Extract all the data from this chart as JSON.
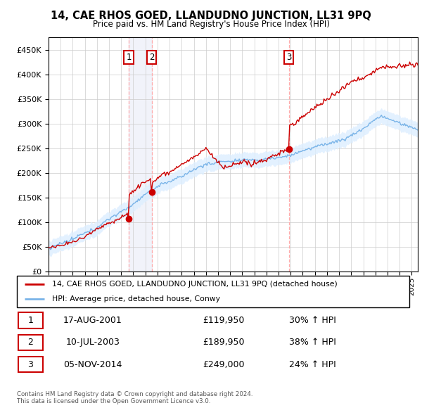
{
  "title": "14, CAE RHOS GOED, LLANDUDNO JUNCTION, LL31 9PQ",
  "subtitle": "Price paid vs. HM Land Registry's House Price Index (HPI)",
  "ylim": [
    0,
    475000
  ],
  "xlim_start": 1995.0,
  "xlim_end": 2025.5,
  "purchases": [
    {
      "label": "1",
      "date_num": 2001.62,
      "price": 119950
    },
    {
      "label": "2",
      "date_num": 2003.52,
      "price": 189950
    },
    {
      "label": "3",
      "date_num": 2014.84,
      "price": 249000
    }
  ],
  "legend_entries": [
    {
      "label": "14, CAE RHOS GOED, LLANDUDNO JUNCTION, LL31 9PQ (detached house)",
      "color": "#cc0000"
    },
    {
      "label": "HPI: Average price, detached house, Conwy",
      "color": "#7ab4e8"
    }
  ],
  "table_rows": [
    {
      "num": "1",
      "date": "17-AUG-2001",
      "price": "£119,950",
      "hpi": "30% ↑ HPI"
    },
    {
      "num": "2",
      "date": "10-JUL-2003",
      "price": "£189,950",
      "hpi": "38% ↑ HPI"
    },
    {
      "num": "3",
      "date": "05-NOV-2014",
      "price": "£249,000",
      "hpi": "24% ↑ HPI"
    }
  ],
  "footer": [
    "Contains HM Land Registry data © Crown copyright and database right 2024.",
    "This data is licensed under the Open Government Licence v3.0."
  ],
  "background_color": "#ffffff",
  "grid_color": "#cccccc",
  "hpi_fill_color": "#ddeeff",
  "vline_color": "#ffaaaa",
  "span_color": "#e8ecf8"
}
